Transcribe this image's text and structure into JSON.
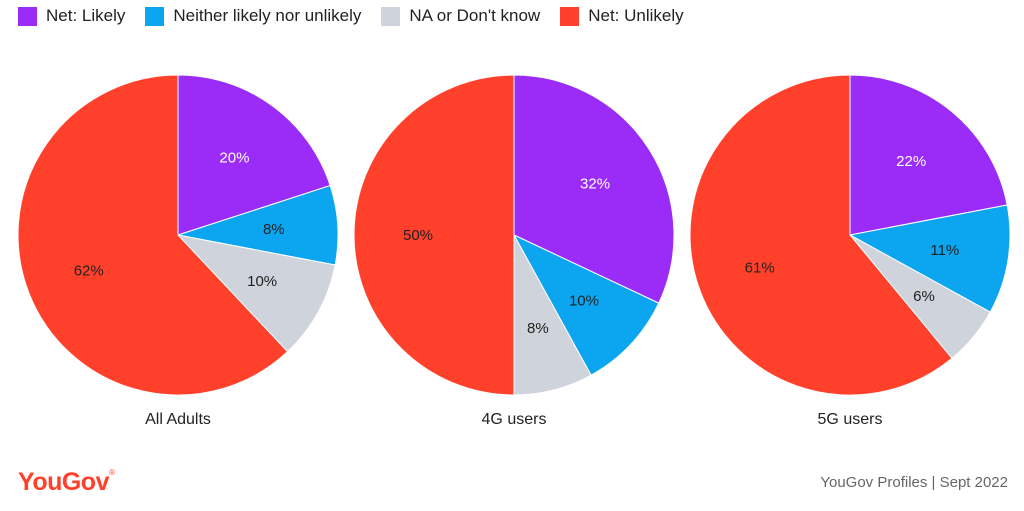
{
  "legend": [
    {
      "label": "Net: Likely",
      "color": "#9b2cf7"
    },
    {
      "label": "Neither likely nor unlikely",
      "color": "#0ba5f0"
    },
    {
      "label": "NA or Don't know",
      "color": "#cfd3dc"
    },
    {
      "label": "Net: Unlikely",
      "color": "#ff412c"
    }
  ],
  "chart_data": [
    {
      "type": "pie",
      "title": "All Adults",
      "categories": [
        "Net: Likely",
        "Neither likely nor unlikely",
        "NA or Don't know",
        "Net: Unlikely"
      ],
      "values": [
        20,
        8,
        10,
        62
      ],
      "labels": [
        "20%",
        "8%",
        "10%",
        "62%"
      ]
    },
    {
      "type": "pie",
      "title": "4G users",
      "categories": [
        "Net: Likely",
        "Neither likely nor unlikely",
        "NA or Don't know",
        "Net: Unlikely"
      ],
      "values": [
        32,
        10,
        8,
        50
      ],
      "labels": [
        "32%",
        "10%",
        "8%",
        "50%"
      ]
    },
    {
      "type": "pie",
      "title": "5G users",
      "categories": [
        "Net: Likely",
        "Neither likely nor unlikely",
        "NA or Don't know",
        "Net: Unlikely"
      ],
      "values": [
        22,
        11,
        6,
        61
      ],
      "labels": [
        "22%",
        "11%",
        "6%",
        "61%"
      ]
    }
  ],
  "footer": {
    "logo": "YouGov",
    "logo_mark": "®",
    "logo_color": "#ff412c",
    "source": "YouGov Profiles | Sept 2022"
  },
  "label_colors": {
    "light": "#ffffff",
    "dark": "#222222"
  }
}
